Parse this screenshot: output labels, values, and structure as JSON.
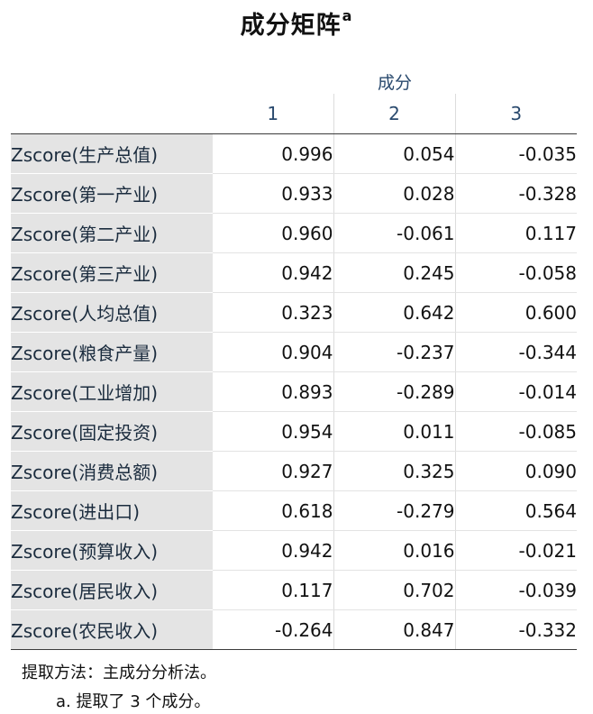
{
  "title": {
    "text": "成分矩阵",
    "superscript": "a"
  },
  "table": {
    "group_header": "成分",
    "columns": [
      "1",
      "2",
      "3"
    ],
    "rows": [
      {
        "label": "Zscore(生产总值)",
        "values": [
          "0.996",
          "0.054",
          "-0.035"
        ]
      },
      {
        "label": "Zscore(第一产业)",
        "values": [
          "0.933",
          "0.028",
          "-0.328"
        ]
      },
      {
        "label": "Zscore(第二产业)",
        "values": [
          "0.960",
          "-0.061",
          "0.117"
        ]
      },
      {
        "label": "Zscore(第三产业)",
        "values": [
          "0.942",
          "0.245",
          "-0.058"
        ]
      },
      {
        "label": "Zscore(人均总值)",
        "values": [
          "0.323",
          "0.642",
          "0.600"
        ]
      },
      {
        "label": "Zscore(粮食产量)",
        "values": [
          "0.904",
          "-0.237",
          "-0.344"
        ]
      },
      {
        "label": "Zscore(工业增加)",
        "values": [
          "0.893",
          "-0.289",
          "-0.014"
        ]
      },
      {
        "label": "Zscore(固定投资)",
        "values": [
          "0.954",
          "0.011",
          "-0.085"
        ]
      },
      {
        "label": "Zscore(消费总额)",
        "values": [
          "0.927",
          "0.325",
          "0.090"
        ]
      },
      {
        "label": "Zscore(进出口)",
        "values": [
          "0.618",
          "-0.279",
          "0.564"
        ]
      },
      {
        "label": "Zscore(预算收入)",
        "values": [
          "0.942",
          "0.016",
          "-0.021"
        ]
      },
      {
        "label": "Zscore(居民收入)",
        "values": [
          "0.117",
          "0.702",
          "-0.039"
        ]
      },
      {
        "label": "Zscore(农民收入)",
        "values": [
          "-0.264",
          "0.847",
          "-0.332"
        ]
      }
    ]
  },
  "footnotes": {
    "method": "提取方法：主成分分析法。",
    "note_a": "a. 提取了 3 个成分。"
  }
}
